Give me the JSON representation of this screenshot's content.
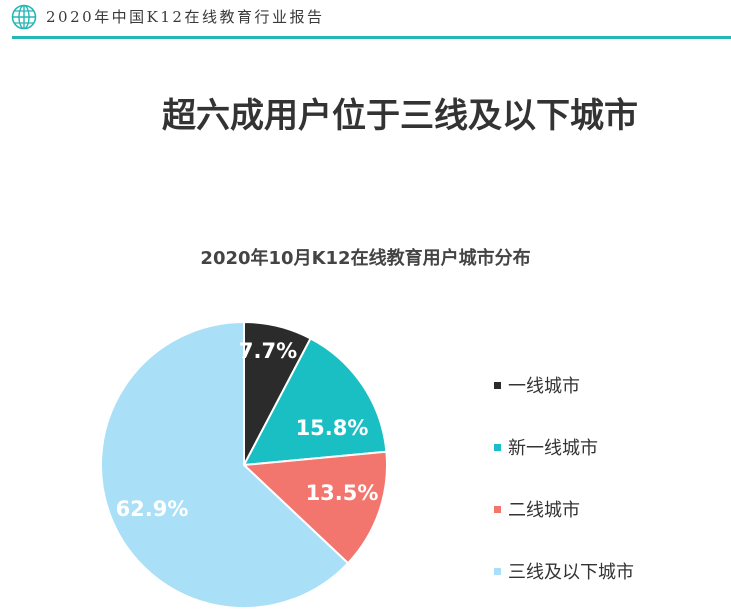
{
  "header": {
    "report_title": "2020年中国K12在线教育行业报告",
    "icon": "globe-icon",
    "accent_color": "#25b7b5"
  },
  "page_title": "超六成用户位于三线及以下城市",
  "chart_data": {
    "type": "pie",
    "title": "2020年10月K12在线教育用户城市分布",
    "unit": "%",
    "slices": [
      {
        "label": "一线城市",
        "value": 7.7,
        "display": "7.7%",
        "color": "#2b2b2b"
      },
      {
        "label": "新一线城市",
        "value": 15.8,
        "display": "15.8%",
        "color": "#19bfc2"
      },
      {
        "label": "二线城市",
        "value": 13.5,
        "display": "13.5%",
        "color": "#f2766e"
      },
      {
        "label": "三线及以下城市",
        "value": 62.9,
        "display": "62.9%",
        "color": "#a9dff7"
      }
    ],
    "legend_position": "right"
  }
}
